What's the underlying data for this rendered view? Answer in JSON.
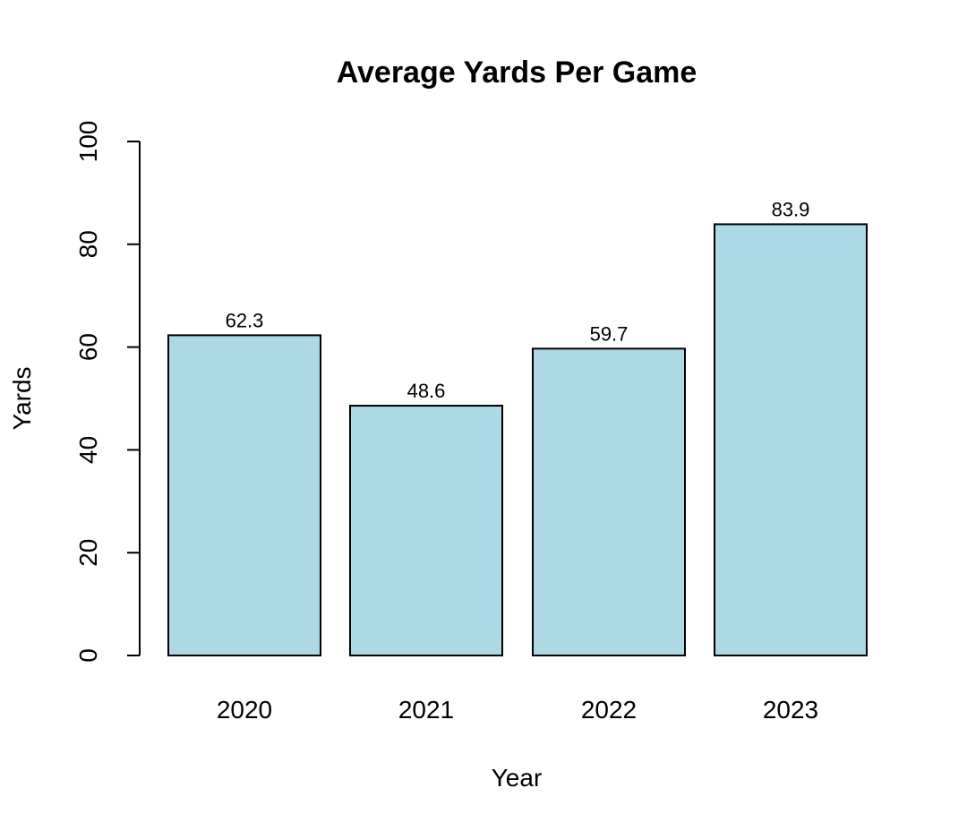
{
  "chart_data": {
    "type": "bar",
    "title": "Average Yards Per Game",
    "xlabel": "Year",
    "ylabel": "Yards",
    "categories": [
      "2020",
      "2021",
      "2022",
      "2023"
    ],
    "values": [
      62.3,
      48.6,
      59.7,
      83.9
    ],
    "value_labels": [
      "62.3",
      "48.6",
      "59.7",
      "83.9"
    ],
    "ylim": [
      0,
      100
    ],
    "yticks": [
      0,
      20,
      40,
      60,
      80,
      100
    ],
    "ytick_labels": [
      "0",
      "20",
      "40",
      "60",
      "80",
      "100"
    ],
    "bar_color": "#add8e6",
    "bar_border_color": "#000000",
    "grid": false,
    "legend": "none"
  }
}
